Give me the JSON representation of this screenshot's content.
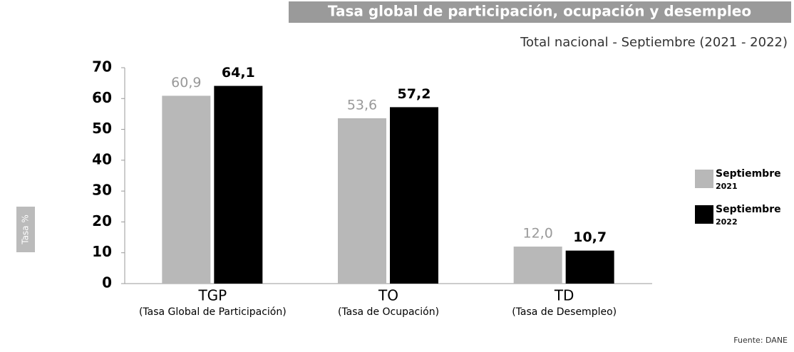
{
  "chart_data": {
    "type": "bar",
    "title": "Tasa global de participación, ocupación y desempleo",
    "subtitle": "Total nacional - Septiembre (2021 - 2022)",
    "y_label": "Tasa %",
    "categories": [
      "TGP",
      "TO",
      "TD"
    ],
    "category_sublabels": [
      "(Tasa Global de Participación)",
      "(Tasa de Ocupación)",
      "(Tasa de Desempleo)"
    ],
    "series": [
      {
        "name": "Septiembre 2021",
        "color": "#b8b8b8",
        "values": [
          60.9,
          53.6,
          12.0
        ],
        "value_labels": [
          "60,9",
          "53,6",
          "12,0"
        ]
      },
      {
        "name": "Septiembre 2022",
        "color": "#000000",
        "values": [
          64.1,
          57.2,
          10.7
        ],
        "value_labels": [
          "64,1",
          "57,2",
          "10,7"
        ]
      }
    ],
    "ylim": [
      0,
      70
    ],
    "yticks": [
      0,
      10,
      20,
      30,
      40,
      50,
      60,
      70
    ],
    "legend": "right",
    "source": "Fuente: DANE"
  }
}
